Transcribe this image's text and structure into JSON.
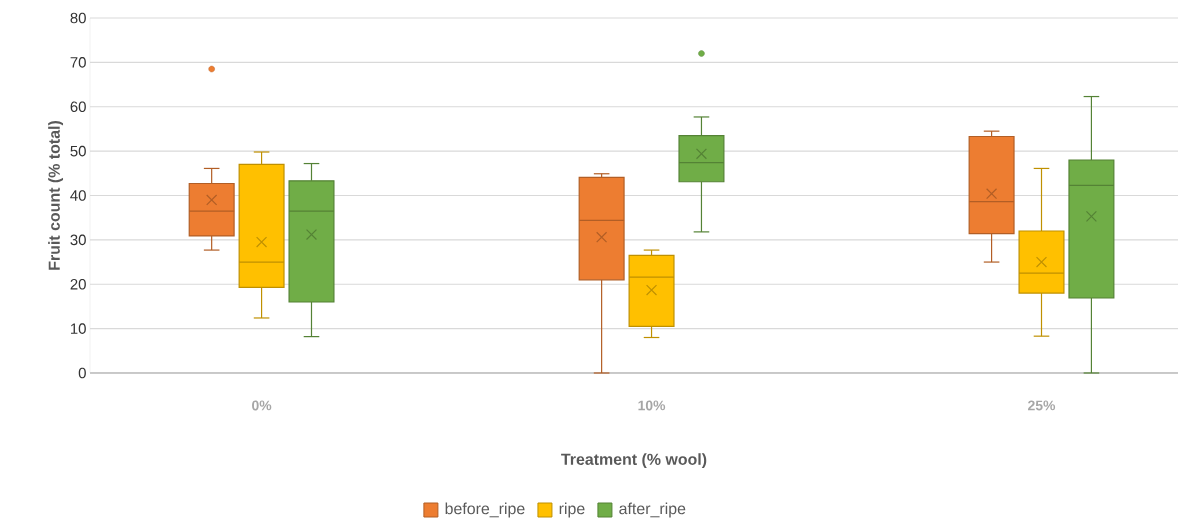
{
  "chart_data": {
    "type": "box",
    "categories": [
      "0%",
      "10%",
      "25%"
    ],
    "xlabel": "Treatment (% wool)",
    "ylabel": "Fruit count  (% total)",
    "ylim": [
      0,
      80
    ],
    "yticks": [
      0,
      10,
      20,
      30,
      40,
      50,
      60,
      70,
      80
    ],
    "grid": "y",
    "legend": "bottom",
    "series": [
      {
        "name": "before_ripe",
        "color": "#ed7d31",
        "boxes": [
          {
            "low": 27.7,
            "q1": 30.9,
            "median": 36.5,
            "q3": 42.7,
            "high": 46.1,
            "mean": 39.0,
            "outliers": [
              68.5
            ]
          },
          {
            "low": 0,
            "q1": 21.0,
            "median": 34.4,
            "q3": 44.1,
            "high": 44.9,
            "mean": 30.6
          },
          {
            "low": 25.0,
            "q1": 31.4,
            "median": 38.6,
            "q3": 53.3,
            "high": 54.5,
            "mean": 40.4
          }
        ]
      },
      {
        "name": "ripe",
        "color": "#ffc000",
        "boxes": [
          {
            "low": 12.4,
            "q1": 19.3,
            "median": 25.0,
            "q3": 47.0,
            "high": 49.8,
            "mean": 29.5
          },
          {
            "low": 8.0,
            "q1": 10.5,
            "median": 21.6,
            "q3": 26.5,
            "high": 27.7,
            "mean": 18.7
          },
          {
            "low": 8.3,
            "q1": 18.0,
            "median": 22.5,
            "q3": 32.0,
            "high": 46.1,
            "mean": 25.0
          }
        ]
      },
      {
        "name": "after_ripe",
        "color": "#70ad47",
        "boxes": [
          {
            "low": 8.2,
            "q1": 16.0,
            "median": 36.5,
            "q3": 43.3,
            "high": 47.2,
            "mean": 31.2
          },
          {
            "low": 31.8,
            "q1": 43.1,
            "median": 47.4,
            "q3": 53.5,
            "high": 57.7,
            "mean": 49.4,
            "outliers": [
              72.0
            ]
          },
          {
            "low": 0,
            "q1": 16.9,
            "median": 42.3,
            "q3": 48.0,
            "high": 62.3,
            "mean": 35.3
          }
        ]
      }
    ]
  }
}
